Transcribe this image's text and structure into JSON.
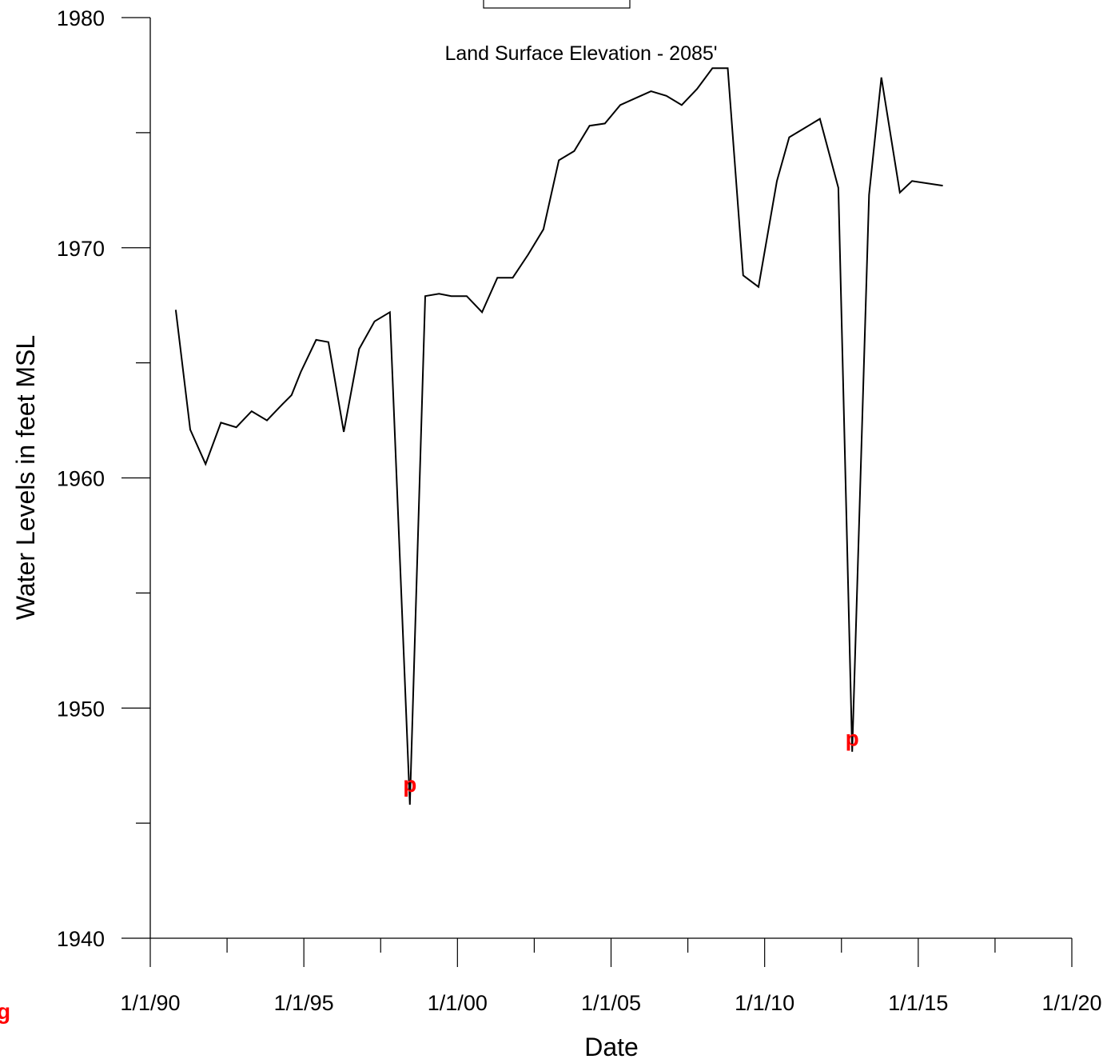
{
  "chart_data": {
    "type": "line",
    "title": "",
    "annotation": "Land Surface Elevation - 2085'",
    "xlabel": "Date",
    "ylabel": "Water Levels in feet MSL",
    "xlim": [
      1990,
      2020
    ],
    "ylim": [
      1940,
      1980
    ],
    "x_ticks": [
      {
        "value": 1990,
        "label": "1/1/90"
      },
      {
        "value": 1995,
        "label": "1/1/95"
      },
      {
        "value": 2000,
        "label": "1/1/00"
      },
      {
        "value": 2005,
        "label": "1/1/05"
      },
      {
        "value": 2010,
        "label": "1/1/10"
      },
      {
        "value": 2015,
        "label": "1/1/15"
      },
      {
        "value": 2020,
        "label": "1/1/20"
      }
    ],
    "x_minor_ticks": [
      1992.5,
      1997.5,
      2002.5,
      2007.5,
      2012.5,
      2017.5
    ],
    "y_ticks": [
      {
        "value": 1940,
        "label": "1940"
      },
      {
        "value": 1950,
        "label": "1950"
      },
      {
        "value": 1960,
        "label": "1960"
      },
      {
        "value": 1970,
        "label": "1970"
      },
      {
        "value": 1980,
        "label": "1980"
      }
    ],
    "y_minor_ticks": [
      1945,
      1955,
      1965,
      1975
    ],
    "line_color": "#000000",
    "flag_color": "#ff0000",
    "series": [
      {
        "points": [
          [
            1990.83,
            1967.3
          ],
          [
            1991.3,
            1962.1
          ],
          [
            1991.8,
            1960.6
          ],
          [
            1992.3,
            1962.4
          ],
          [
            1992.8,
            1962.2
          ],
          [
            1993.3,
            1962.9
          ],
          [
            1993.8,
            1962.5
          ],
          [
            1994.3,
            1963.2
          ],
          [
            1994.6,
            1963.6
          ],
          [
            1994.9,
            1964.6
          ],
          [
            1995.4,
            1966.0
          ],
          [
            1995.8,
            1965.9
          ],
          [
            1996.3,
            1962.0
          ],
          [
            1996.8,
            1965.6
          ],
          [
            1997.3,
            1966.8
          ],
          [
            1997.8,
            1967.2
          ],
          [
            1998.45,
            1945.8
          ],
          [
            1998.95,
            1967.9
          ],
          [
            1999.4,
            1968.0
          ],
          [
            1999.8,
            1967.9
          ],
          [
            2000.3,
            1967.9
          ],
          [
            2000.8,
            1967.2
          ],
          [
            2001.3,
            1968.7
          ],
          [
            2001.8,
            1968.7
          ],
          [
            2002.3,
            1969.7
          ],
          [
            2002.8,
            1970.8
          ],
          [
            2003.3,
            1973.8
          ],
          [
            2003.8,
            1974.2
          ],
          [
            2004.3,
            1975.3
          ],
          [
            2004.8,
            1975.4
          ],
          [
            2005.3,
            1976.2
          ],
          [
            2005.8,
            1976.5
          ],
          [
            2006.3,
            1976.8
          ],
          [
            2006.8,
            1976.6
          ],
          [
            2007.3,
            1976.2
          ],
          [
            2007.8,
            1976.9
          ],
          [
            2008.3,
            1977.8
          ],
          [
            2008.8,
            1977.8
          ],
          [
            2009.3,
            1968.8
          ],
          [
            2009.8,
            1968.3
          ],
          [
            2010.4,
            1972.9
          ],
          [
            2010.8,
            1974.8
          ],
          [
            2011.3,
            1975.2
          ],
          [
            2011.8,
            1975.6
          ],
          [
            2012.4,
            1972.6
          ],
          [
            2012.85,
            1948.1
          ],
          [
            2013.4,
            1972.3
          ],
          [
            2013.8,
            1977.4
          ],
          [
            2014.4,
            1972.4
          ],
          [
            2014.8,
            1972.9
          ],
          [
            2015.8,
            1972.7
          ]
        ]
      }
    ],
    "flags": [
      {
        "label": "p",
        "x": 1998.45,
        "y": 1946.7
      },
      {
        "label": "p",
        "x": 2012.85,
        "y": 1948.7
      }
    ],
    "corner_mark": "g"
  }
}
